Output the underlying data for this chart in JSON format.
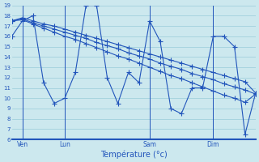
{
  "background_color": "#cce8ee",
  "grid_color": "#99ccd9",
  "line_color": "#2255bb",
  "xlabel": "Température (°c)",
  "day_labels": [
    "Ven",
    "Lun",
    "Sam",
    "Dim"
  ],
  "day_positions": [
    1,
    5,
    13,
    19
  ],
  "ylim": [
    6,
    19
  ],
  "yticks": [
    6,
    7,
    8,
    9,
    10,
    11,
    12,
    13,
    14,
    15,
    16,
    17,
    18,
    19
  ],
  "xlim": [
    0,
    23
  ],
  "series_oscillating": [
    16.0,
    17.5,
    18.0,
    11.5,
    9.5,
    10.0,
    12.5,
    19.0,
    19.0,
    12.0,
    9.5,
    12.5,
    11.5,
    17.5,
    15.5,
    9.0,
    8.5,
    11.0,
    11.0,
    16.0,
    16.0,
    15.0,
    6.5,
    10.5
  ],
  "series_trend1": [
    17.5,
    17.8,
    17.5,
    17.2,
    17.0,
    16.7,
    16.4,
    16.1,
    15.8,
    15.5,
    15.2,
    14.9,
    14.6,
    14.3,
    14.0,
    13.7,
    13.4,
    13.1,
    12.8,
    12.5,
    12.2,
    11.9,
    11.6,
    10.5
  ],
  "series_trend2": [
    17.5,
    17.7,
    17.3,
    17.0,
    16.7,
    16.4,
    16.1,
    15.8,
    15.4,
    15.1,
    14.8,
    14.4,
    14.1,
    13.8,
    13.4,
    13.1,
    12.8,
    12.4,
    12.1,
    11.8,
    11.4,
    11.1,
    10.8,
    10.4
  ],
  "series_trend3": [
    17.5,
    17.6,
    17.2,
    16.8,
    16.4,
    16.0,
    15.7,
    15.3,
    14.9,
    14.5,
    14.1,
    13.8,
    13.4,
    13.0,
    12.6,
    12.2,
    11.9,
    11.5,
    11.1,
    10.7,
    10.3,
    10.0,
    9.6,
    10.4
  ]
}
